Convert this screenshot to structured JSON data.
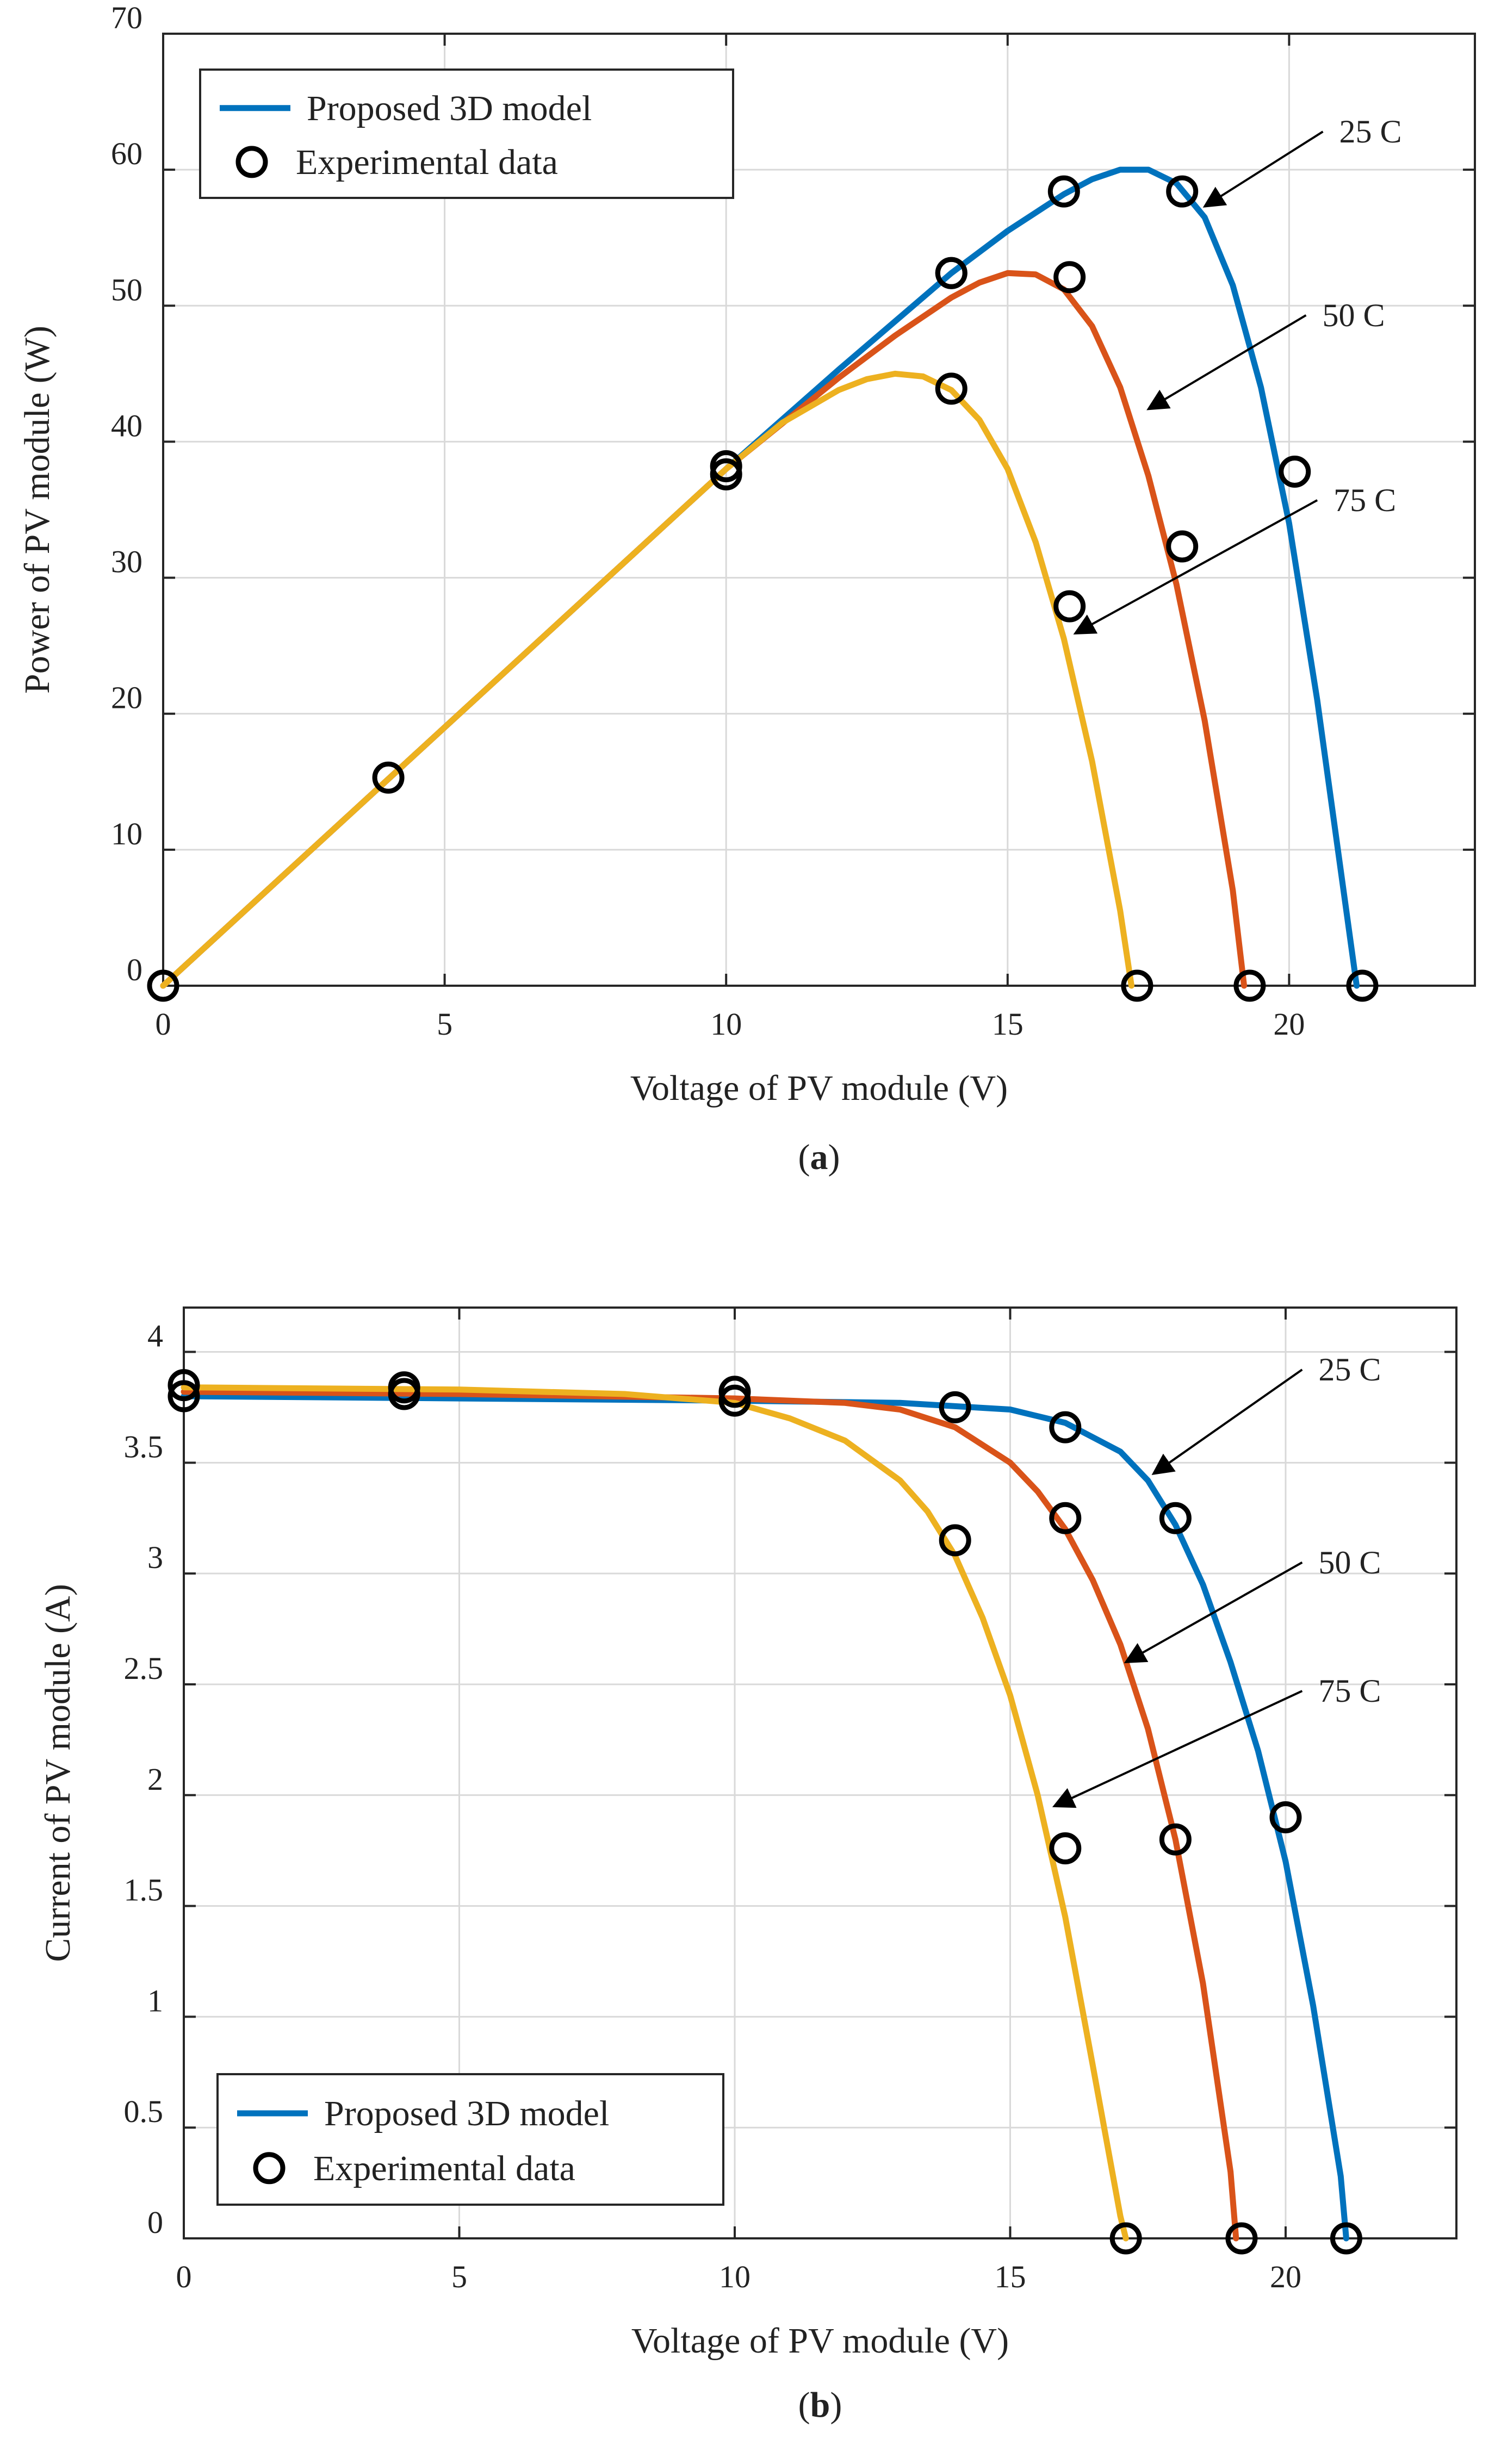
{
  "chart_data": [
    {
      "type": "line",
      "panel": "a",
      "caption_prefix": "(",
      "caption_letter": "a",
      "caption_suffix": ")",
      "xlabel": "Voltage of PV module (V)",
      "ylabel": "Power of PV module (W)",
      "xlim": [
        0,
        23.3
      ],
      "ylim": [
        0,
        70
      ],
      "xticks": [
        0,
        5,
        10,
        15,
        20
      ],
      "yticks": [
        0,
        10,
        20,
        30,
        40,
        50,
        60,
        70
      ],
      "grid": true,
      "legend": {
        "placement": "top-left",
        "model_label": "Proposed 3D model",
        "data_label": "Experimental data"
      },
      "series": [
        {
          "name": "25 C",
          "color": "#0072BD",
          "x": [
            0,
            4,
            8,
            10,
            12,
            14,
            15,
            16,
            16.5,
            17,
            17.5,
            18,
            18.5,
            19,
            19.5,
            20,
            20.5,
            21,
            21.2
          ],
          "values": [
            0,
            15.2,
            30.4,
            38,
            45.3,
            52.4,
            55.5,
            58.2,
            59.3,
            60,
            60,
            59,
            56.5,
            51.5,
            44,
            34,
            21,
            6,
            0
          ]
        },
        {
          "name": "50 C",
          "color": "#D95319",
          "x": [
            0,
            4,
            8,
            10,
            12,
            13,
            14,
            14.5,
            15,
            15.5,
            16,
            16.5,
            17,
            17.5,
            18,
            18.5,
            19,
            19.2
          ],
          "values": [
            0,
            15.2,
            30.4,
            38,
            44.7,
            47.8,
            50.6,
            51.7,
            52.4,
            52.3,
            51.2,
            48.5,
            44,
            37.5,
            29.5,
            19.5,
            7,
            0
          ]
        },
        {
          "name": "75 C",
          "color": "#EDB120",
          "x": [
            0,
            4,
            8,
            10,
            11,
            12,
            12.5,
            13,
            13.5,
            14,
            14.5,
            15,
            15.5,
            16,
            16.5,
            17,
            17.2
          ],
          "values": [
            0,
            15.2,
            30.4,
            38,
            41.4,
            43.8,
            44.6,
            45,
            44.8,
            43.8,
            41.6,
            38,
            32.6,
            25.5,
            16.5,
            5.5,
            0
          ]
        }
      ],
      "experimental": {
        "x": [
          0,
          4,
          10,
          10,
          14,
          16,
          18.1,
          20.1,
          21.3,
          14,
          16.1,
          18.1,
          19.3,
          14,
          16.1,
          17.3
        ],
        "values": [
          0,
          15.3,
          38.2,
          37.6,
          52.4,
          58.4,
          58.4,
          37.8,
          0,
          43.9,
          52.1,
          32.3,
          0,
          52.4,
          27.9,
          0
        ]
      },
      "annotations": [
        {
          "text": "25 C",
          "x": 20.6,
          "y": 62.8,
          "target_x": 18.5,
          "target_y": 57.3
        },
        {
          "text": "50 C",
          "x": 20.3,
          "y": 49.3,
          "target_x": 17.5,
          "target_y": 42.4
        },
        {
          "text": "75 C",
          "x": 20.5,
          "y": 35.7,
          "target_x": 16.2,
          "target_y": 25.9
        }
      ]
    },
    {
      "type": "line",
      "panel": "b",
      "caption_prefix": "(",
      "caption_letter": "b",
      "caption_suffix": ")",
      "xlabel": "Voltage of PV module (V)",
      "ylabel": "Current of PV module (A)",
      "xlim": [
        0,
        23.1
      ],
      "ylim": [
        0,
        4.2
      ],
      "xticks": [
        0,
        5,
        10,
        15,
        20
      ],
      "yticks": [
        0,
        0.5,
        1,
        1.5,
        2,
        2.5,
        3,
        3.5,
        4
      ],
      "grid": true,
      "legend": {
        "placement": "bottom-left",
        "model_label": "Proposed 3D model",
        "data_label": "Experimental data"
      },
      "series": [
        {
          "name": "25 C",
          "color": "#0072BD",
          "x": [
            0,
            5,
            10,
            13,
            15,
            16,
            17,
            17.5,
            18,
            18.5,
            19,
            19.5,
            20,
            20.5,
            21,
            21.1
          ],
          "values": [
            3.8,
            3.79,
            3.78,
            3.77,
            3.74,
            3.68,
            3.55,
            3.42,
            3.22,
            2.95,
            2.6,
            2.2,
            1.7,
            1.05,
            0.28,
            0
          ]
        },
        {
          "name": "50 C",
          "color": "#D95319",
          "x": [
            0,
            5,
            10,
            12,
            13,
            14,
            15,
            15.5,
            16,
            16.5,
            17,
            17.5,
            18,
            18.5,
            19,
            19.1
          ],
          "values": [
            3.82,
            3.81,
            3.79,
            3.77,
            3.74,
            3.66,
            3.5,
            3.37,
            3.2,
            2.97,
            2.68,
            2.3,
            1.8,
            1.15,
            0.3,
            0
          ]
        },
        {
          "name": "75 C",
          "color": "#EDB120",
          "x": [
            0,
            5,
            8,
            10,
            11,
            12,
            13,
            13.5,
            14,
            14.5,
            15,
            15.5,
            16,
            16.5,
            17,
            17.1
          ],
          "values": [
            3.84,
            3.83,
            3.81,
            3.77,
            3.7,
            3.6,
            3.42,
            3.28,
            3.08,
            2.8,
            2.45,
            2.0,
            1.45,
            0.78,
            0.1,
            0
          ]
        }
      ],
      "experimental": {
        "x": [
          0,
          0,
          4,
          4,
          10,
          10,
          14,
          16,
          18,
          20,
          21.1,
          16,
          18,
          19.2,
          14,
          16,
          17.1
        ],
        "values": [
          3.85,
          3.8,
          3.84,
          3.81,
          3.82,
          3.78,
          3.75,
          3.66,
          3.25,
          1.9,
          0,
          3.25,
          1.8,
          0,
          3.15,
          1.76,
          0
        ]
      },
      "annotations": [
        {
          "text": "25 C",
          "x": 20.3,
          "y": 3.92,
          "target_x": 17.6,
          "target_y": 3.45
        },
        {
          "text": "50 C",
          "x": 20.3,
          "y": 3.05,
          "target_x": 17.1,
          "target_y": 2.6
        },
        {
          "text": "75 C",
          "x": 20.3,
          "y": 2.47,
          "target_x": 15.8,
          "target_y": 1.95
        }
      ]
    }
  ]
}
